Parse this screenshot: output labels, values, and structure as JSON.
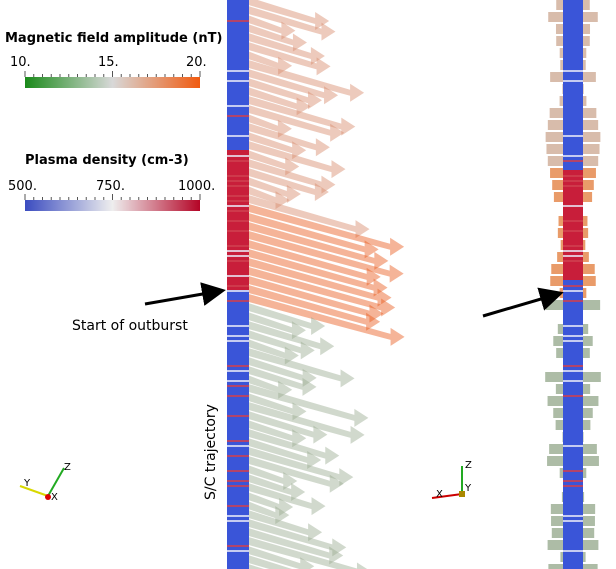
{
  "legends": [
    {
      "title": "Magnetic field amplitude (nT)",
      "ticks": [
        "10.",
        "15.",
        "20."
      ]
    },
    {
      "title": "Plasma density (cm-3)",
      "ticks": [
        "500.",
        "750.",
        "1000."
      ]
    }
  ],
  "annotations": {
    "outburst": "Start of outburst",
    "trajectory": "S/C trajectory"
  },
  "left_axes": {
    "y": "Y",
    "x": "X",
    "z": "Z"
  },
  "right_axes": {
    "z": "Z",
    "y": "Y",
    "x": "X"
  }
}
